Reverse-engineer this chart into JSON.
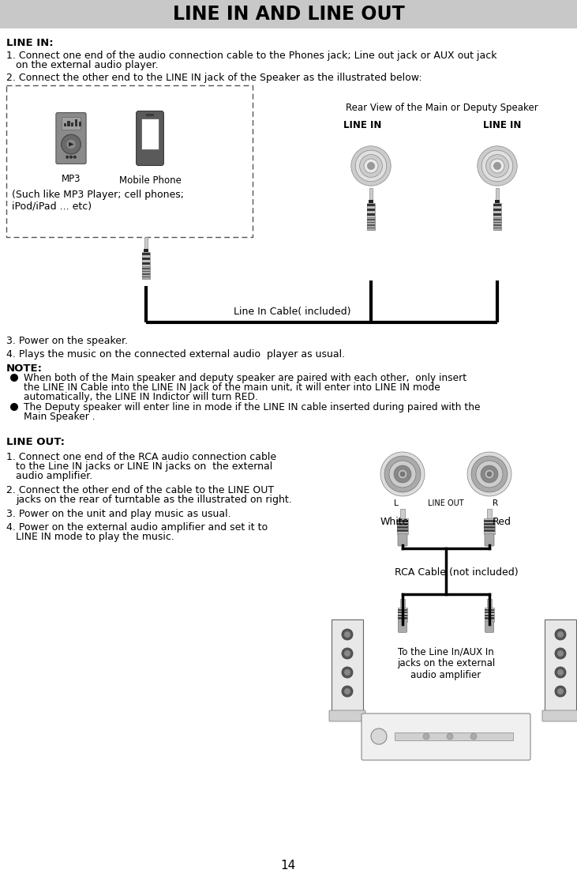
{
  "title": "LINE IN AND LINE OUT",
  "title_bg": "#c8c8c8",
  "title_fontsize": 18,
  "page_num": "14",
  "bg_color": "#ffffff",
  "text_color": "#000000",
  "line_in_label": "LINE IN:",
  "line_out_label": "LINE OUT:",
  "rear_view_label": "Rear View of the Main or Deputy Speaker",
  "line_in_cable_label": "Line In Cable( included)",
  "rca_cable_label": "RCA Cable (not included)",
  "white_label": "White",
  "red_label": "Red",
  "to_amplifier_label": "To the Line In/AUX In\njacks on the external\naudio amplifier",
  "line_in_box_label1": "(Such like MP3 Player; cell phones;",
  "line_in_box_label2": "iPod/iPad ... etc)",
  "mp3_label": "MP3",
  "mobile_label": "Mobile Phone",
  "line_out_jack_label": "LINE OUT",
  "L_label": "L",
  "R_label": "R"
}
